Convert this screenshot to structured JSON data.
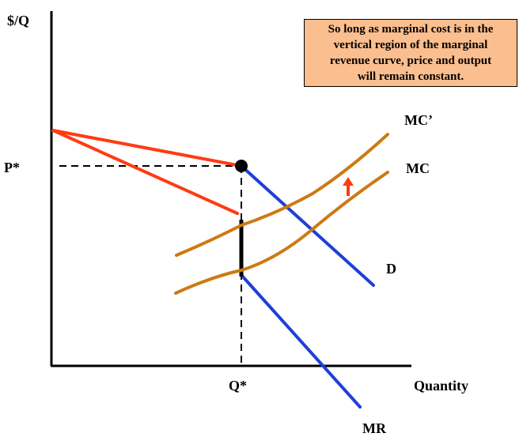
{
  "axes": {
    "y_label": "$/Q",
    "x_label": "Quantity"
  },
  "labels": {
    "price_star": "P*",
    "quantity_star": "Q*",
    "demand": "D",
    "marginal_revenue": "MR",
    "marginal_cost": "MC",
    "marginal_cost_shifted": "MC’"
  },
  "note": {
    "lines": [
      "So long as marginal cost is in the",
      "vertical region of the marginal",
      "revenue curve, price and output",
      "will remain constant."
    ]
  },
  "colors": {
    "upper_segments": "#ff3b14",
    "lower_segments": "#1f3fd6",
    "marginal_cost_curves": "#cc7a12",
    "shift_arrow": "#ff3b14",
    "note_background": "#fbbe8e",
    "axes": "#000000",
    "kink_point": "#000000"
  }
}
